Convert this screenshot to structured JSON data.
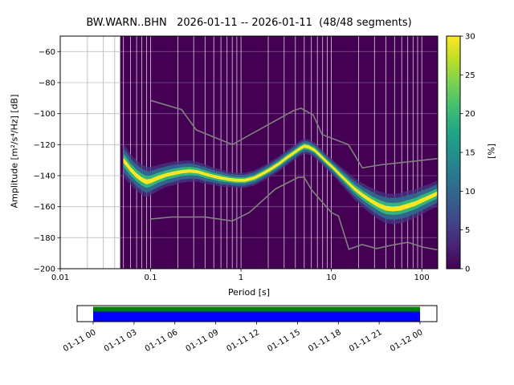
{
  "title": "BW.WARN..BHN   2026-01-11 -- 2026-01-11  (48/48 segments)",
  "chart_data": {
    "type": "heatmap",
    "title": "BW.WARN..BHN   2026-01-11 -- 2026-01-11  (48/48 segments)",
    "xlabel": "Period [s]",
    "ylabel": "Amplitude [m²/s⁴/Hz] [dB]",
    "xscale": "log",
    "grid": true,
    "xlim": [
      0.01,
      150
    ],
    "ylim": [
      -200,
      -50
    ],
    "xticks": {
      "values": [
        0.01,
        0.1,
        1,
        10,
        100
      ],
      "labels": [
        "0.01",
        "0.1",
        "1",
        "10",
        "100"
      ]
    },
    "yticks": {
      "values": [
        -60,
        -80,
        -100,
        -120,
        -140,
        -160,
        -180,
        -200
      ],
      "labels": [
        "−60",
        "−80",
        "−100",
        "−120",
        "−140",
        "−160",
        "−180",
        "−200"
      ]
    },
    "background_color": "#440154",
    "data_start_period": 0.046,
    "colorbar": {
      "label": "[%]",
      "min": 0,
      "max": 30,
      "tick_values": [
        0,
        5,
        10,
        15,
        20,
        25,
        30
      ],
      "tick_labels": [
        "0",
        "5",
        "10",
        "15",
        "20",
        "25",
        "30"
      ],
      "colormap": "viridis",
      "gradient": [
        "#440154",
        "#482475",
        "#414487",
        "#355f8d",
        "#2a788e",
        "#21918c",
        "#22a884",
        "#44bf70",
        "#7ad151",
        "#bddf26",
        "#fde725"
      ]
    },
    "psd_mode": {
      "periods": [
        0.05,
        0.055,
        0.06,
        0.07,
        0.08,
        0.09,
        0.1,
        0.12,
        0.15,
        0.18,
        0.22,
        0.27,
        0.33,
        0.4,
        0.5,
        0.6,
        0.75,
        0.9,
        1.1,
        1.4,
        1.7,
        2.1,
        2.6,
        3.2,
        3.8,
        4.5,
        5.0,
        5.6,
        6.5,
        7.5,
        9.0,
        10.5,
        12.5,
        15.0,
        18.0,
        22.0,
        27.0,
        33.0,
        40.0,
        48.0,
        58.0,
        70.0,
        85.0,
        100.0,
        120.0,
        148.0
      ],
      "db": [
        -130,
        -133,
        -136,
        -140,
        -142.5,
        -144,
        -143.5,
        -141.5,
        -139.5,
        -138.5,
        -137.5,
        -137,
        -137.5,
        -139,
        -140.5,
        -141.5,
        -142.5,
        -143,
        -143,
        -141.5,
        -139,
        -136,
        -132.5,
        -128.5,
        -125.5,
        -122.5,
        -121,
        -121.5,
        -123.5,
        -127,
        -131.5,
        -135,
        -139.5,
        -144,
        -148.5,
        -152.5,
        -156,
        -159,
        -161,
        -161.5,
        -161,
        -159.5,
        -158,
        -156,
        -154,
        -151.5
      ],
      "spread": [
        7.5,
        7.5,
        7,
        7,
        7,
        7,
        6.5,
        6,
        5.5,
        5.5,
        5,
        5,
        4.5,
        4.5,
        4,
        4,
        3.5,
        3.5,
        3.5,
        3.5,
        3.5,
        3.5,
        3.5,
        3.5,
        3.5,
        3.5,
        3.5,
        3.5,
        3.5,
        3.5,
        3.5,
        3.5,
        4,
        4.5,
        5,
        5.5,
        6,
        6.5,
        7,
        7,
        7,
        7,
        6.5,
        6.5,
        6,
        6
      ]
    },
    "noise_models": {
      "color": "#808080",
      "high": {
        "periods": [
          0.1,
          0.22,
          0.32,
          0.8,
          3.8,
          4.6,
          6.3,
          7.9,
          15.4,
          22,
          35,
          150
        ],
        "db": [
          -91.5,
          -97.4,
          -110.5,
          -120.0,
          -98.1,
          -96.5,
          -101.0,
          -113.5,
          -120.0,
          -135.0,
          -133.0,
          -129.0
        ]
      },
      "low": {
        "periods": [
          0.1,
          0.17,
          0.4,
          0.8,
          1.24,
          2.4,
          4.3,
          5.0,
          6.0,
          10.0,
          12.0,
          15.6,
          21.9,
          31.6,
          45.0,
          70.0,
          101.0,
          154.0
        ],
        "db": [
          -168.0,
          -166.7,
          -166.7,
          -169.2,
          -163.7,
          -148.6,
          -141.1,
          -141.1,
          -149.0,
          -163.8,
          -166.0,
          -187.5,
          -184.4,
          -187.0,
          -185.0,
          -183.0,
          -186.0,
          -188.0
        ]
      }
    },
    "timeline": {
      "tick_labels": [
        "01-11 00",
        "01-11 03",
        "01-11 06",
        "01-11 09",
        "01-11 12",
        "01-11 15",
        "01-11 18",
        "01-11 21",
        "01-12 00"
      ],
      "bar_colors": {
        "top": "#008000",
        "bottom": "#0000ff"
      }
    }
  }
}
